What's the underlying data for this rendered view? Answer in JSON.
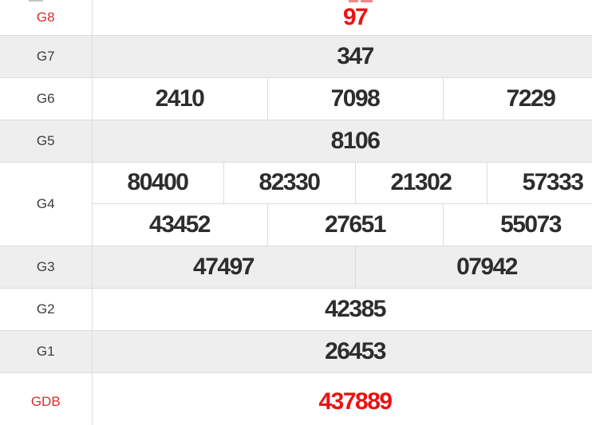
{
  "colors": {
    "red_value": "#ee1111",
    "red_label": "#dd2c2c",
    "value_text": "#2d2d2d",
    "label_text": "#3c3c3c",
    "alt_row_bg": "#eeeeee",
    "row_bg": "#ffffff",
    "border": "#dcdcdc"
  },
  "table": {
    "rows": [
      {
        "id": "G8",
        "label": "G8",
        "red": true,
        "lines": [
          [
            "97"
          ]
        ]
      },
      {
        "id": "G7",
        "label": "G7",
        "red": false,
        "lines": [
          [
            "347"
          ]
        ]
      },
      {
        "id": "G6",
        "label": "G6",
        "red": false,
        "lines": [
          [
            "2410",
            "7098",
            "7229"
          ]
        ]
      },
      {
        "id": "G5",
        "label": "G5",
        "red": false,
        "lines": [
          [
            "8106"
          ]
        ]
      },
      {
        "id": "G4",
        "label": "G4",
        "red": false,
        "lines": [
          [
            "80400",
            "82330",
            "21302",
            "57333"
          ],
          [
            "43452",
            "27651",
            "55073"
          ]
        ]
      },
      {
        "id": "G3",
        "label": "G3",
        "red": false,
        "lines": [
          [
            "47497",
            "07942"
          ]
        ]
      },
      {
        "id": "G2",
        "label": "G2",
        "red": false,
        "lines": [
          [
            "42385"
          ]
        ]
      },
      {
        "id": "G1",
        "label": "G1",
        "red": false,
        "lines": [
          [
            "26453"
          ]
        ]
      },
      {
        "id": "GDB",
        "label": "GDB",
        "red": true,
        "lines": [
          [
            "437889"
          ]
        ]
      }
    ]
  }
}
